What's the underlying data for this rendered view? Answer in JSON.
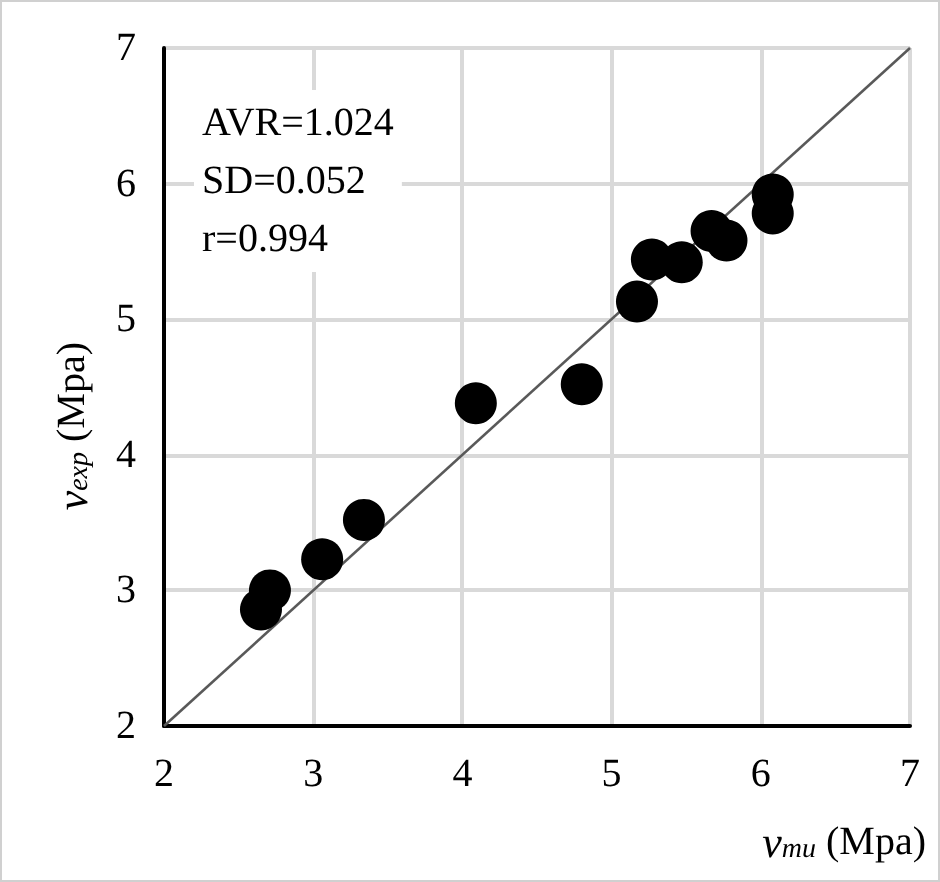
{
  "chart_data": {
    "type": "scatter",
    "xlabel": "v$_{mu}$ (Mpa)",
    "ylabel": "v$_{exp}$ (Mpa)",
    "annotations": [
      "AVR=1.024",
      "SD=0.052",
      "r=0.994"
    ],
    "series": [
      {
        "color": "#000000",
        "marker": "circle",
        "x": [
          2.65,
          2.71,
          3.06,
          3.34,
          4.09,
          4.8,
          5.17,
          5.27,
          5.47,
          5.67,
          5.77,
          6.08,
          6.08
        ],
        "values": [
          2.86,
          3.0,
          3.23,
          3.52,
          4.38,
          4.52,
          5.13,
          5.44,
          5.42,
          5.65,
          5.58,
          5.92,
          5.78
        ]
      },
      {
        "type": "line",
        "color": "#595959",
        "marker": "none",
        "x": [
          2,
          7
        ],
        "values": [
          2,
          7
        ]
      }
    ],
    "xlim": [
      2,
      7
    ],
    "ylim": [
      2,
      7
    ],
    "xticks": [
      2,
      3,
      4,
      5,
      6,
      7
    ],
    "yticks": [
      2,
      3,
      4,
      5,
      6,
      7
    ],
    "grid": true
  }
}
